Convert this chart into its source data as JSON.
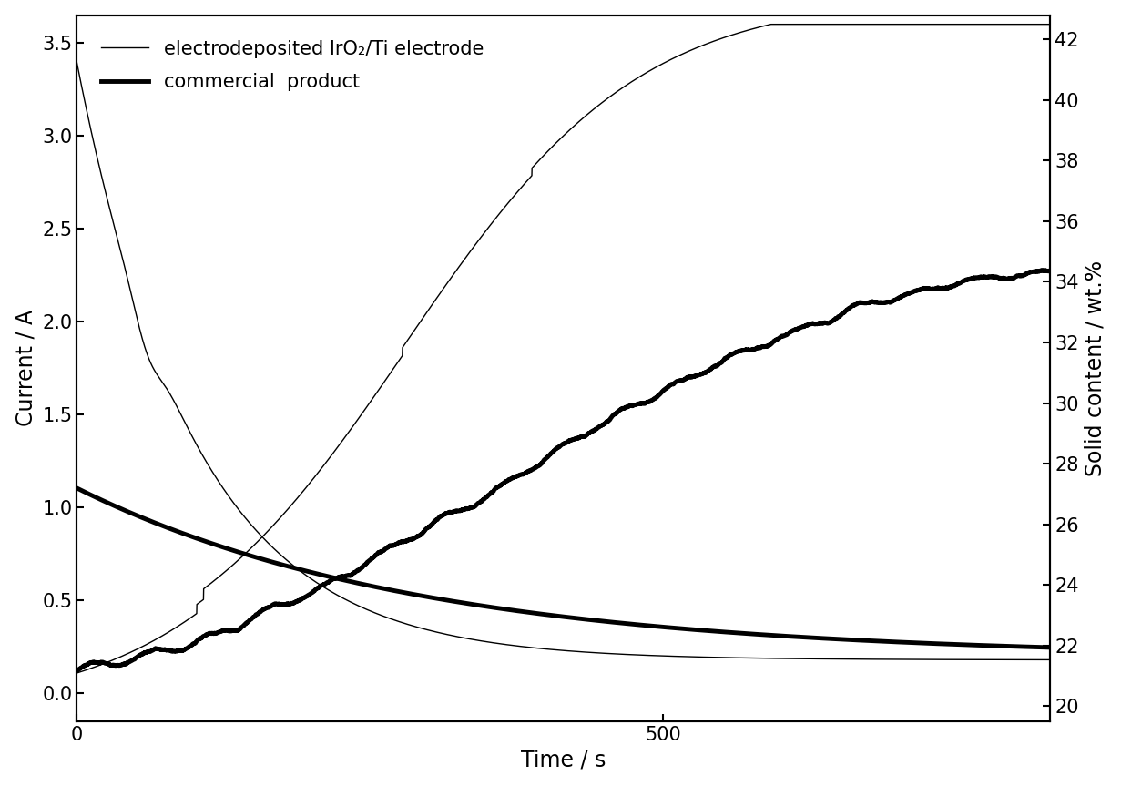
{
  "xlabel": "Time / s",
  "ylabel_left": "Current / A",
  "ylabel_right": "Solid content / wt.%",
  "xlim": [
    0,
    830
  ],
  "ylim_left": [
    -0.15,
    3.65
  ],
  "ylim_right": [
    19.5,
    42.8
  ],
  "xticks": [
    0,
    500
  ],
  "yticks_left": [
    0.0,
    0.5,
    1.0,
    1.5,
    2.0,
    2.5,
    3.0,
    3.5
  ],
  "yticks_right": [
    20,
    22,
    24,
    26,
    28,
    30,
    32,
    34,
    36,
    38,
    40,
    42
  ],
  "legend_thin": "electrodeposited IrO₂/Ti electrode",
  "legend_thick": "commercial  product",
  "background_color": "#ffffff",
  "line_color": "#000000",
  "thin_linewidth": 1.0,
  "thick_linewidth": 3.5
}
